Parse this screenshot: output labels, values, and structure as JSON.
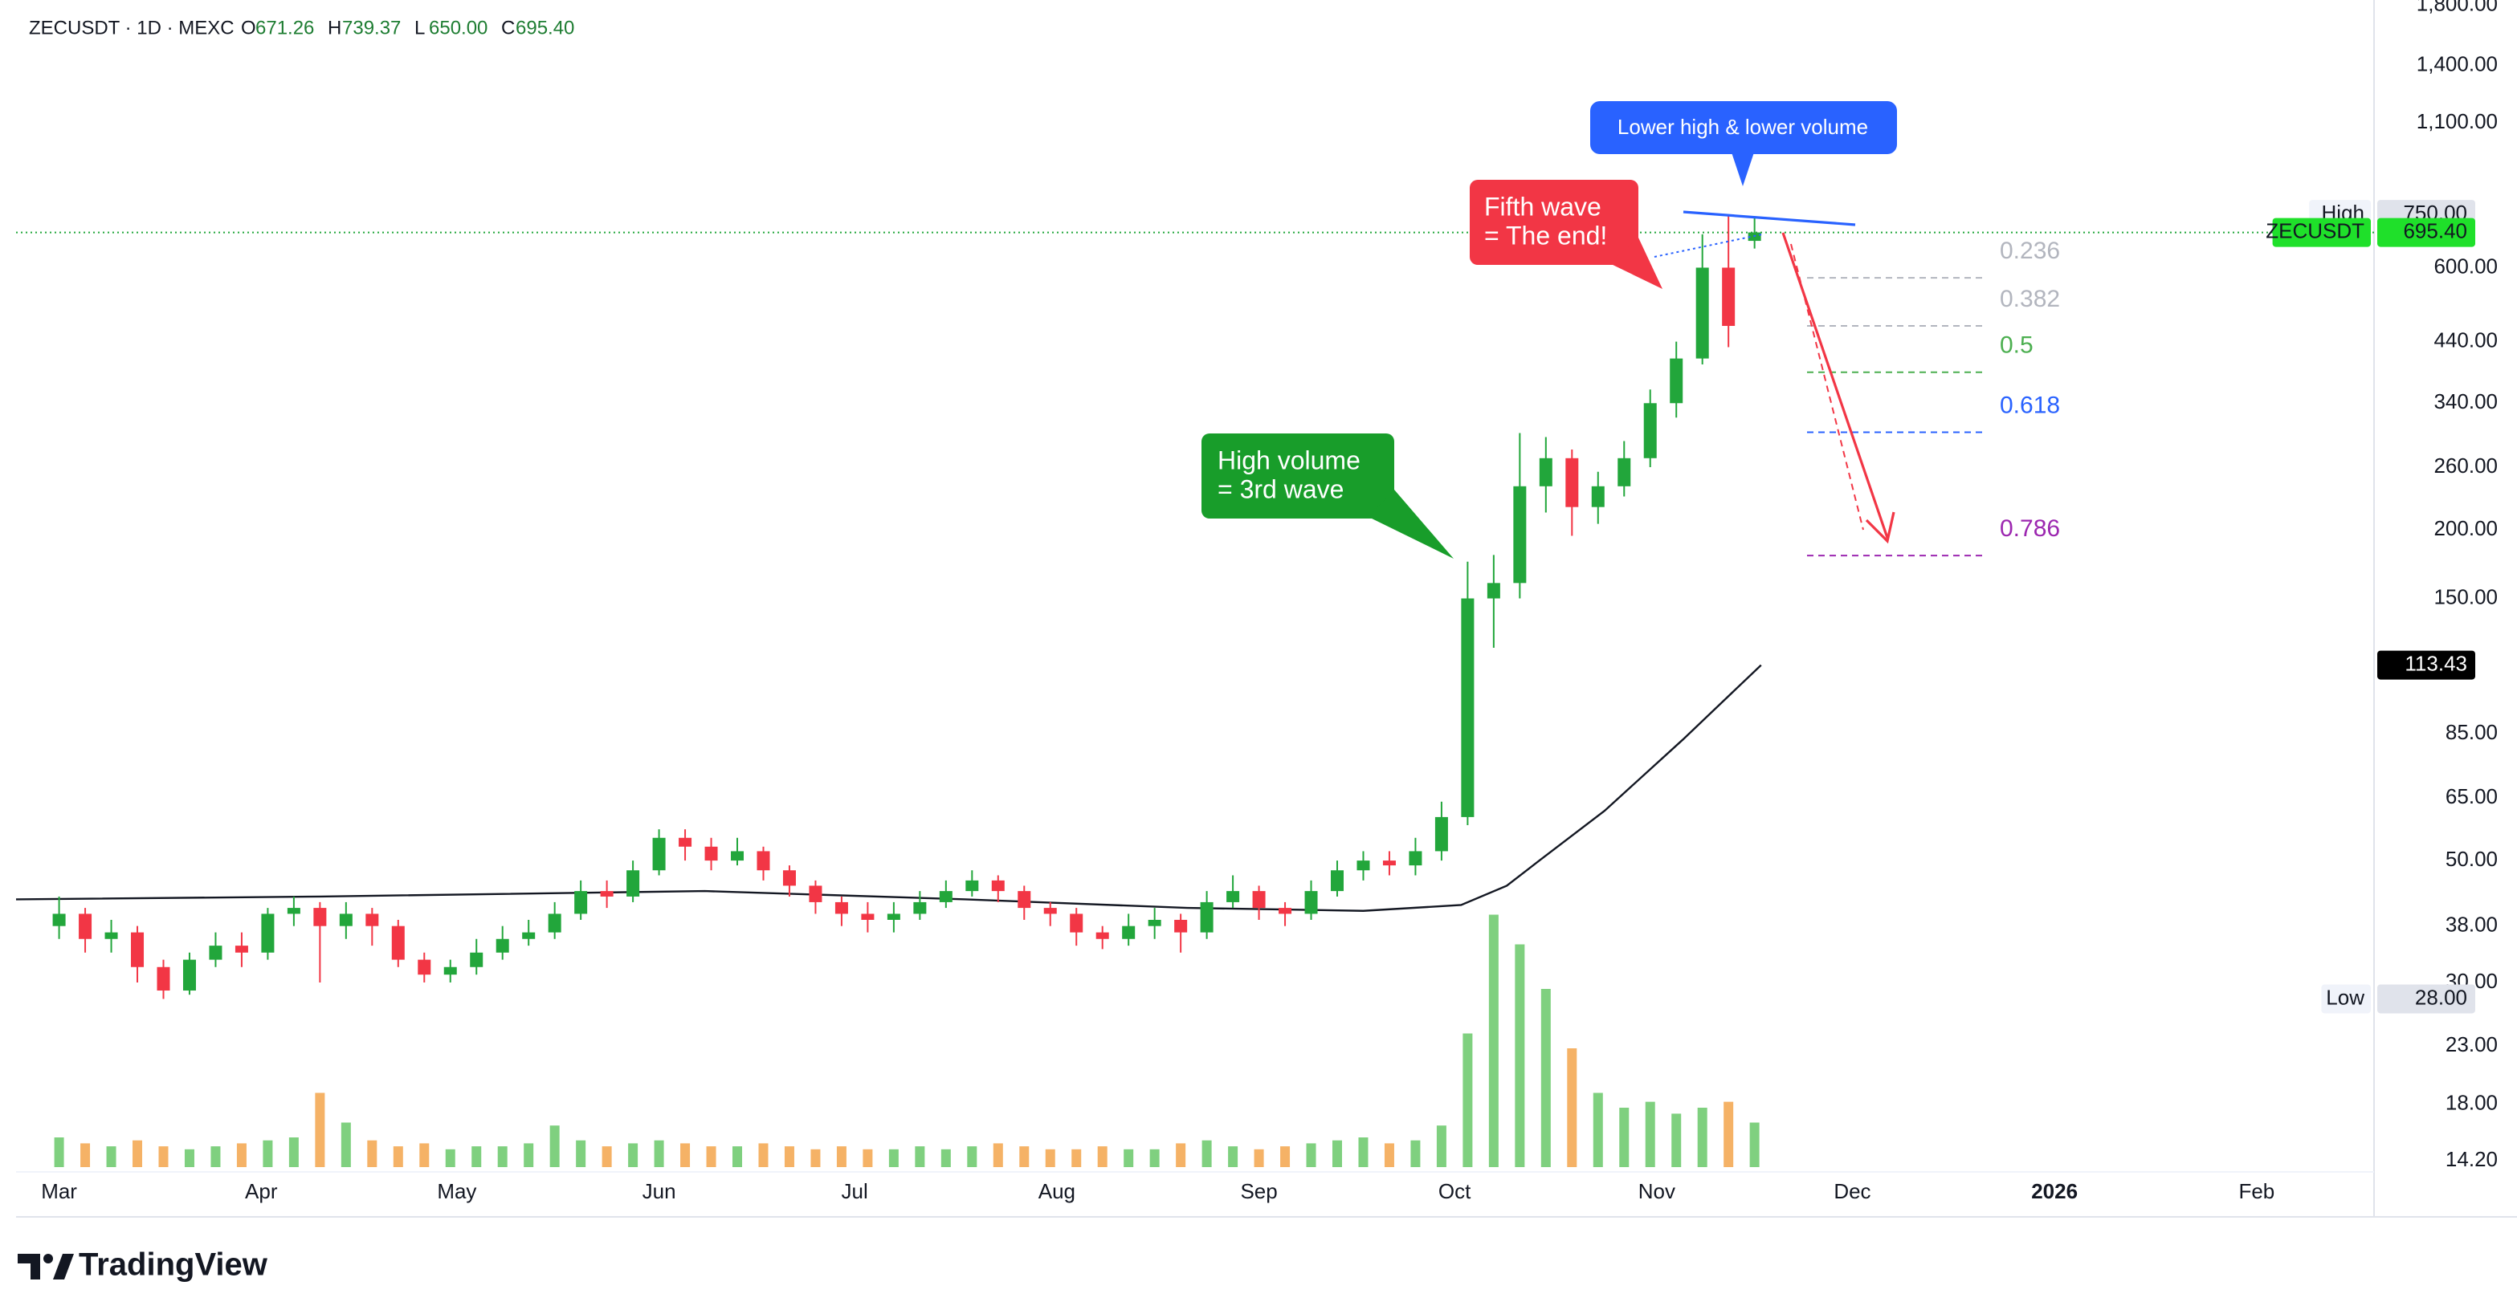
{
  "chart_data": {
    "type": "candlestick",
    "legend": {
      "symbol": "ZECUSDT · 1D · MEXC",
      "ohlc": [
        {
          "label": "O",
          "value": "671.26"
        },
        {
          "label": "H",
          "value": "739.37"
        },
        {
          "label": "L",
          "value": "650.00"
        },
        {
          "label": "C",
          "value": "695.40"
        }
      ]
    },
    "log_scale": true,
    "up_color": "#22a63b",
    "down_color": "#f23645",
    "volume_up_color": "#7fd07f",
    "volume_down_color": "#f5b266",
    "ma_color": "#131722",
    "xlim": [
      -6.6,
      355
    ],
    "xticks": [
      {
        "value": 0,
        "label": "Mar"
      },
      {
        "value": 31,
        "label": "Apr"
      },
      {
        "value": 61,
        "label": "May"
      },
      {
        "value": 92,
        "label": "Jun"
      },
      {
        "value": 122,
        "label": "Jul"
      },
      {
        "value": 153,
        "label": "Aug"
      },
      {
        "value": 184,
        "label": "Sep"
      },
      {
        "value": 214,
        "label": "Oct"
      },
      {
        "value": 245,
        "label": "Nov"
      },
      {
        "value": 275,
        "label": "Dec"
      },
      {
        "value": 306,
        "label": "2026"
      },
      {
        "value": 337,
        "label": "Feb"
      }
    ],
    "ylim": [
      13.56,
      1842
    ],
    "yticks": [
      {
        "value": 1800,
        "label": "1,800.00"
      },
      {
        "value": 1400,
        "label": "1,400.00"
      },
      {
        "value": 1100,
        "label": "1,100.00"
      },
      {
        "value": 600,
        "label": "600.00"
      },
      {
        "value": 440,
        "label": "440.00"
      },
      {
        "value": 340,
        "label": "340.00"
      },
      {
        "value": 260,
        "label": "260.00"
      },
      {
        "value": 200,
        "label": "200.00"
      },
      {
        "value": 150,
        "label": "150.00"
      },
      {
        "value": 85,
        "label": "85.00"
      },
      {
        "value": 65,
        "label": "65.00"
      },
      {
        "value": 50,
        "label": "50.00"
      },
      {
        "value": 38,
        "label": "38.00"
      },
      {
        "value": 30,
        "label": "30.00"
      },
      {
        "value": 23,
        "label": "23.00"
      },
      {
        "value": 18,
        "label": "18.00"
      },
      {
        "value": 14.2,
        "label": "14.20"
      }
    ],
    "x": [
      0,
      4,
      8,
      12,
      16,
      20,
      24,
      28,
      32,
      36,
      40,
      44,
      48,
      52,
      56,
      60,
      64,
      68,
      72,
      76,
      80,
      84,
      88,
      92,
      96,
      100,
      104,
      108,
      112,
      116,
      120,
      124,
      128,
      132,
      136,
      140,
      144,
      148,
      152,
      156,
      160,
      164,
      168,
      172,
      176,
      180,
      184,
      188,
      192,
      196,
      200,
      204,
      208,
      212,
      216,
      220,
      224,
      228,
      232,
      236,
      240,
      244,
      248,
      252,
      256,
      260
    ],
    "open": [
      38,
      40,
      36,
      37,
      32,
      29,
      33,
      35,
      34,
      40,
      41,
      38,
      40,
      38,
      33,
      31,
      32,
      34,
      36,
      37,
      40,
      44,
      43,
      48,
      55,
      53,
      50,
      52,
      48,
      45,
      42,
      40,
      39,
      40,
      42,
      44,
      46,
      44,
      41,
      40,
      37,
      36,
      38,
      39,
      37,
      42,
      44,
      41,
      40,
      44,
      48,
      50,
      49,
      52,
      60,
      150,
      160,
      240,
      270,
      220,
      240,
      270,
      340,
      410,
      600,
      671.26
    ],
    "high": [
      43,
      41,
      39,
      38,
      33,
      34,
      37,
      37,
      41,
      43,
      42,
      42,
      41,
      39,
      34,
      33,
      36,
      38,
      39,
      42,
      46,
      46,
      50,
      57,
      57,
      55,
      55,
      53,
      49,
      46,
      43,
      42,
      42,
      44,
      46,
      48,
      47,
      45,
      42,
      41,
      38,
      40,
      41,
      40,
      44,
      47,
      45,
      42,
      46,
      50,
      52,
      52,
      55,
      64,
      175,
      180,
      300,
      295,
      280,
      255,
      290,
      360,
      440,
      690,
      750,
      739.37
    ],
    "low": [
      36,
      34,
      34,
      30,
      28,
      28.5,
      32,
      32,
      33,
      38,
      30,
      36,
      35,
      32,
      30,
      30,
      31,
      33,
      35,
      36,
      39,
      41,
      42,
      47,
      50,
      48,
      49,
      46,
      43,
      40,
      38,
      37,
      37,
      39,
      41,
      43,
      42,
      39,
      38,
      35,
      34.5,
      35,
      36,
      34,
      36,
      41,
      39,
      38,
      39,
      43,
      46,
      47,
      47,
      50,
      58,
      122,
      150,
      215,
      195,
      205,
      230,
      260,
      320,
      400,
      430,
      650
    ],
    "close": [
      40,
      36,
      37,
      32,
      29,
      33,
      35,
      34,
      40,
      41,
      38,
      40,
      38,
      33,
      31,
      32,
      34,
      36,
      37,
      40,
      44,
      43,
      48,
      55,
      53,
      50,
      52,
      48,
      45,
      42,
      40,
      39,
      40,
      42,
      44,
      46,
      44,
      41,
      40,
      37,
      36,
      38,
      39,
      37,
      42,
      44,
      41,
      40,
      44,
      48,
      50,
      49,
      52,
      60,
      150,
      160,
      240,
      270,
      220,
      240,
      270,
      340,
      410,
      600,
      470,
      695.4
    ],
    "volume_ylim": [
      0,
      100
    ],
    "volume": [
      10,
      8,
      7,
      9,
      7,
      6,
      7,
      8,
      9,
      10,
      25,
      15,
      9,
      7,
      8,
      6,
      7,
      7,
      8,
      14,
      9,
      7,
      8,
      9,
      8,
      7,
      7,
      8,
      7,
      6,
      7,
      6,
      6,
      7,
      6,
      7,
      8,
      7,
      6,
      6,
      7,
      6,
      6,
      8,
      9,
      7,
      6,
      7,
      8,
      9,
      10,
      8,
      9,
      14,
      45,
      85,
      75,
      60,
      40,
      25,
      20,
      22,
      18,
      20,
      22,
      15
    ],
    "ma": {
      "x": [
        -6.6,
        40,
        99,
        139,
        173,
        200,
        215,
        222,
        227,
        237,
        249,
        261
      ],
      "values": [
        42.5,
        43,
        44,
        42.5,
        41,
        40.5,
        41.5,
        45,
        50,
        61.6,
        83,
        113.43
      ]
    },
    "fib": [
      {
        "level": 0.236,
        "price": 575,
        "color": "#b2b5be"
      },
      {
        "level": 0.382,
        "price": 470,
        "color": "#b2b5be"
      },
      {
        "level": 0.5,
        "price": 387,
        "color": "#4caf50"
      },
      {
        "level": 0.618,
        "price": 301,
        "color": "#2962ff"
      },
      {
        "level": 0.786,
        "price": 179.5,
        "color": "#9c27b0"
      }
    ],
    "tags": [
      {
        "name": "High",
        "price": {
          "value": 750,
          "label": "750.00"
        }
      },
      {
        "name": "ZECUSDT",
        "price": {
          "value": 695.4,
          "label": "695.40"
        }
      },
      {
        "price": {
          "value": 113.43,
          "label": "113.43"
        }
      },
      {
        "name": "Low",
        "price": {
          "value": 28,
          "label": "28.00"
        }
      }
    ],
    "annotations": {
      "lower_high": "Lower high & lower volume",
      "fifth_wave": [
        "Fifth wave",
        "= The end!"
      ],
      "third_wave": [
        "High volume",
        "= 3rd wave"
      ]
    }
  },
  "footer": {
    "brand": "TradingView"
  }
}
